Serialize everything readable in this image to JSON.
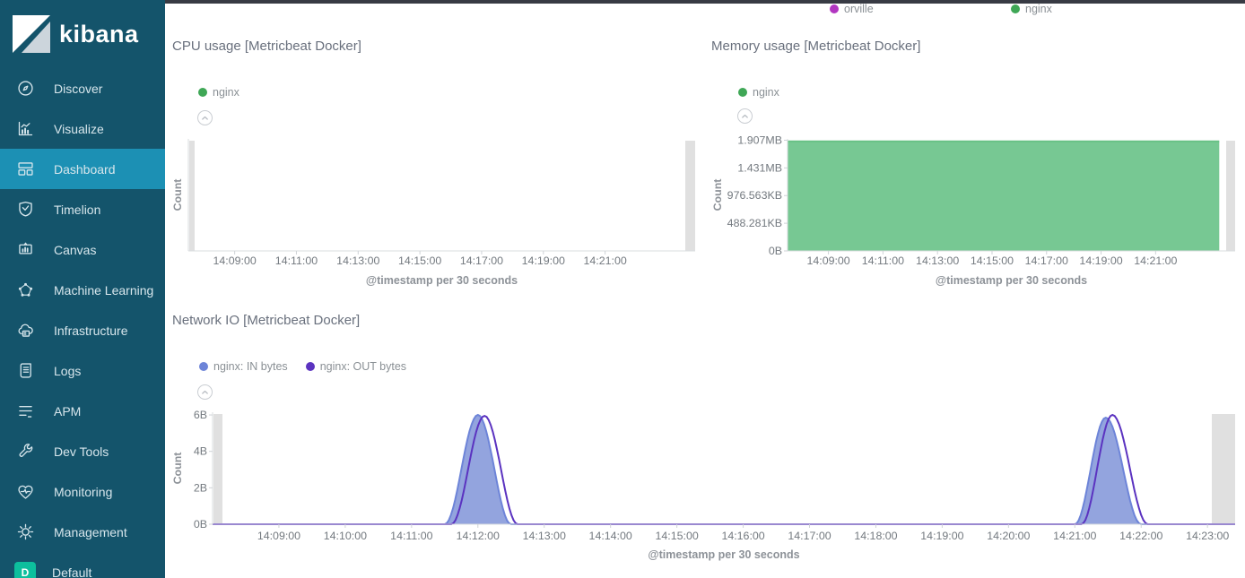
{
  "sidebar": {
    "logo_text": "kibana",
    "items": [
      {
        "label": "Discover",
        "icon": "compass"
      },
      {
        "label": "Visualize",
        "icon": "bar-chart"
      },
      {
        "label": "Dashboard",
        "icon": "dashboard",
        "selected": true
      },
      {
        "label": "Timelion",
        "icon": "shield-chart"
      },
      {
        "label": "Canvas",
        "icon": "easel"
      },
      {
        "label": "Machine Learning",
        "icon": "node-network"
      },
      {
        "label": "Infrastructure",
        "icon": "cloud-server"
      },
      {
        "label": "Logs",
        "icon": "scroll-lines"
      },
      {
        "label": "APM",
        "icon": "text-lines"
      },
      {
        "label": "Dev Tools",
        "icon": "wrench"
      },
      {
        "label": "Monitoring",
        "icon": "heart-pulse"
      },
      {
        "label": "Management",
        "icon": "gear"
      },
      {
        "label": "Default",
        "icon": "space-badge",
        "badge": "D",
        "badge_color": "#0dbf9d"
      }
    ]
  },
  "top_legend": {
    "items": [
      {
        "label": "orville",
        "color": "#b236c1"
      },
      {
        "label": "nginx",
        "color": "#3fa756"
      }
    ]
  },
  "colors": {
    "sidebar_bg": "#14546b",
    "sidebar_selected": "#1c90b4",
    "series_green_fill": "#77c893",
    "series_periwinkle_fill": "#93a4de",
    "series_purple_line": "#5b33c0",
    "endzone_gray": "#d8d8d8"
  },
  "chart_data": [
    {
      "id": "cpu",
      "type": "area",
      "title": "CPU usage [Metricbeat Docker]",
      "legend": [
        {
          "label": "nginx",
          "color": "#3fa756"
        }
      ],
      "ylabel": "Count",
      "xlabel": "@timestamp per 30 seconds",
      "x_domain": [
        "14:07:30",
        "14:23:55"
      ],
      "x_ticks": [
        "14:09:00",
        "14:11:00",
        "14:13:00",
        "14:15:00",
        "14:17:00",
        "14:19:00",
        "14:21:00"
      ],
      "y_ticks": [],
      "y_max": 1,
      "series": []
    },
    {
      "id": "memory",
      "type": "area",
      "title": "Memory usage [Metricbeat Docker]",
      "legend": [
        {
          "label": "nginx",
          "color": "#3fa756"
        }
      ],
      "ylabel": "Count",
      "xlabel": "@timestamp per 30 seconds",
      "x_domain": [
        "14:07:30",
        "14:23:55"
      ],
      "x_ticks": [
        "14:09:00",
        "14:11:00",
        "14:13:00",
        "14:15:00",
        "14:17:00",
        "14:19:00",
        "14:21:00"
      ],
      "y_ticks": [
        {
          "label": "1.907MB",
          "value": 2000000
        },
        {
          "label": "1.431MB",
          "value": 1500000
        },
        {
          "label": "976.563KB",
          "value": 1000000
        },
        {
          "label": "488.281KB",
          "value": 500000
        },
        {
          "label": "0B",
          "value": 0
        }
      ],
      "y_max": 2024000,
      "series": [
        {
          "name": "nginx",
          "render": "area",
          "stroke": "#69c186",
          "fill": "#77c893",
          "points": [
            [
              "14:07:30",
              1980000
            ],
            [
              "14:23:20",
              1980000
            ]
          ]
        }
      ]
    },
    {
      "id": "network",
      "type": "area",
      "title": "Network IO [Metricbeat Docker]",
      "legend": [
        {
          "label": "nginx: IN bytes",
          "color": "#6d84d8"
        },
        {
          "label": "nginx: OUT bytes",
          "color": "#5b33c0"
        }
      ],
      "ylabel": "Count",
      "xlabel": "@timestamp per 30 seconds",
      "x_domain": [
        "14:08:00",
        "14:23:25"
      ],
      "x_ticks": [
        "14:09:00",
        "14:10:00",
        "14:11:00",
        "14:12:00",
        "14:13:00",
        "14:14:00",
        "14:15:00",
        "14:16:00",
        "14:17:00",
        "14:18:00",
        "14:19:00",
        "14:20:00",
        "14:21:00",
        "14:22:00",
        "14:23:00"
      ],
      "y_ticks": [
        {
          "label": "6B",
          "value": 6
        },
        {
          "label": "4B",
          "value": 4
        },
        {
          "label": "2B",
          "value": 2
        },
        {
          "label": "0B",
          "value": 0
        }
      ],
      "y_max": 6.15,
      "series": [
        {
          "name": "nginx: IN bytes",
          "render": "area",
          "stroke": "#6d84d8",
          "fill": "#93a4de",
          "points": [
            [
              "14:08:00",
              0
            ],
            [
              "14:11:30",
              0
            ],
            [
              "14:12:00",
              6
            ],
            [
              "14:12:30",
              0
            ],
            [
              "14:21:00",
              0
            ],
            [
              "14:21:28",
              5.85
            ],
            [
              "14:22:00",
              0
            ],
            [
              "14:23:25",
              0
            ]
          ]
        },
        {
          "name": "nginx: OUT bytes",
          "render": "line",
          "stroke": "#5b33c0",
          "points": [
            [
              "14:08:00",
              0
            ],
            [
              "14:11:36",
              0
            ],
            [
              "14:12:06",
              5.95
            ],
            [
              "14:12:36",
              0
            ],
            [
              "14:21:06",
              0
            ],
            [
              "14:21:34",
              6.0
            ],
            [
              "14:22:06",
              0
            ],
            [
              "14:23:25",
              0
            ]
          ]
        }
      ]
    }
  ]
}
